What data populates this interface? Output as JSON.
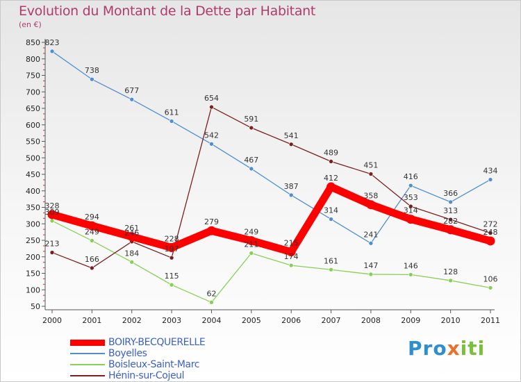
{
  "title": "Evolution du Montant de la Dette par Habitant",
  "subtitle": "(en €)",
  "logo": {
    "p1": "Pro",
    "p2": "x",
    "p3": "iti"
  },
  "chart_data": {
    "type": "line",
    "title": "Evolution du Montant de la Dette par Habitant",
    "subtitle": "(en €)",
    "x": [
      "2000",
      "2001",
      "2002",
      "2003",
      "2004",
      "2005",
      "2006",
      "2007",
      "2008",
      "2009",
      "2010",
      "2011"
    ],
    "yticks": [
      50,
      100,
      150,
      200,
      250,
      300,
      350,
      400,
      450,
      500,
      550,
      600,
      650,
      700,
      750,
      800,
      850
    ],
    "ylim": [
      50,
      850
    ],
    "grid": false,
    "legend_position": "bottom-left",
    "series": [
      {
        "name": "BOIRY-BECQUERELLE",
        "color": "#ff0000",
        "emphasis": true,
        "values": [
          328,
          294,
          261,
          228,
          279,
          249,
          215,
          412,
          358,
          314,
          282,
          248
        ]
      },
      {
        "name": "Boyelles",
        "color": "#4f8fcf",
        "values": [
          823,
          738,
          677,
          611,
          542,
          467,
          387,
          314,
          241,
          416,
          366,
          434
        ]
      },
      {
        "name": "Boisleux-Saint-Marc",
        "color": "#88d055",
        "values": [
          309,
          249,
          184,
          115,
          62,
          211,
          174,
          161,
          147,
          146,
          128,
          106
        ]
      },
      {
        "name": "Hénin-sur-Cojeul",
        "color": "#7a2020",
        "values": [
          213,
          166,
          246,
          197,
          654,
          591,
          541,
          489,
          451,
          353,
          313,
          272
        ]
      }
    ]
  }
}
